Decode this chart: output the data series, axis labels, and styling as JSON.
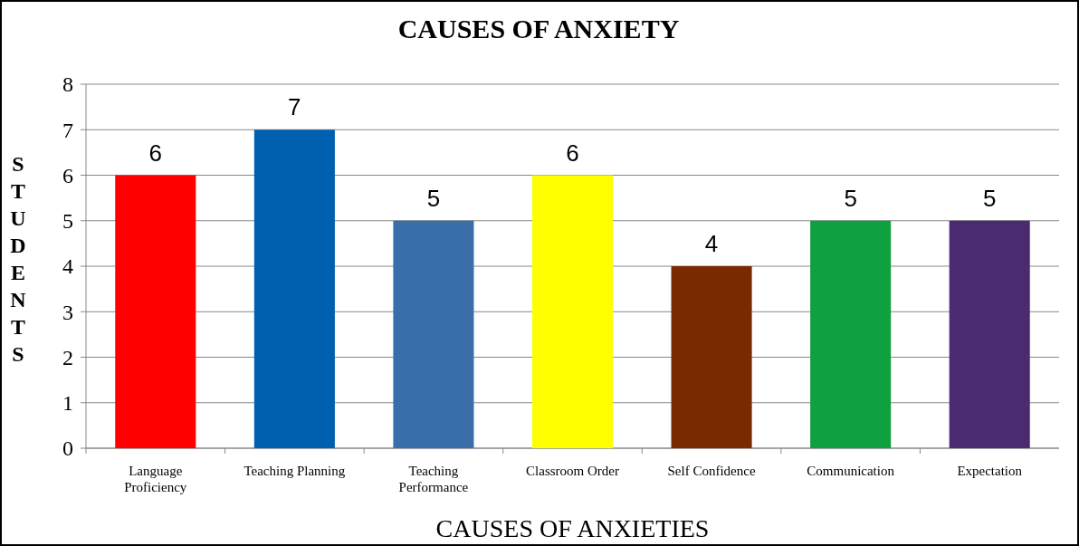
{
  "chart_data": {
    "type": "bar",
    "title": "CAUSES OF ANXIETY",
    "xlabel": "CAUSES OF ANXIETIES",
    "ylabel": "STUDENTS",
    "categories": [
      "Language Proficiency",
      "Teaching Planning",
      "Teaching Performance",
      "Classroom Order",
      "Self Confidence",
      "Communication",
      "Expectation"
    ],
    "values": [
      6,
      7,
      5,
      6,
      4,
      5,
      5
    ],
    "colors": [
      "#ff0000",
      "#0060b0",
      "#3a6ea8",
      "#ffff00",
      "#7a2a00",
      "#10a040",
      "#4a2a70"
    ],
    "ylim": [
      0,
      8
    ],
    "yticks": [
      0,
      1,
      2,
      3,
      4,
      5,
      6,
      7,
      8
    ],
    "grid": "y",
    "data_labels": true
  }
}
